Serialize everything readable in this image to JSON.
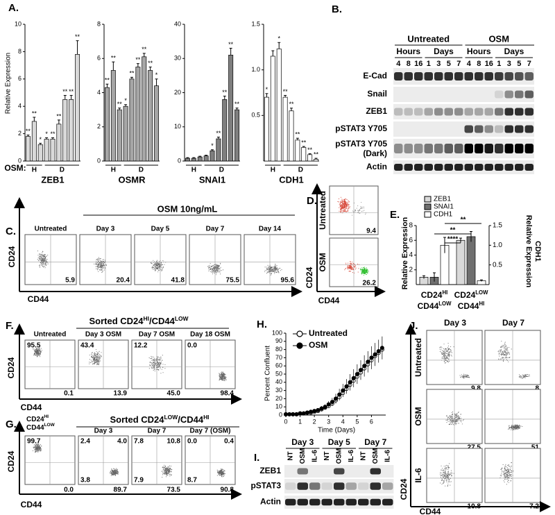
{
  "figure": {
    "A": {
      "label": "A.",
      "y_label": "Relative Expression",
      "osm_label": "OSM:",
      "group_labels": [
        "H",
        "D"
      ],
      "charts": [
        {
          "name": "ZEB1",
          "color": "#d9d9d9",
          "ylim": [
            0,
            10
          ],
          "yticks": [
            0,
            2,
            4,
            6,
            8,
            10
          ],
          "values": [
            1.8,
            2.9,
            1.2,
            1.6,
            1.6,
            2.7,
            4.5,
            4.5,
            7.8
          ],
          "errors": [
            0.1,
            0.3,
            0.1,
            0.1,
            0.1,
            0.3,
            0.3,
            0.3,
            1.0
          ],
          "stars": [
            "**",
            "**",
            "*",
            "*",
            "**",
            "**",
            "**",
            "**",
            "**"
          ]
        },
        {
          "name": "OSMR",
          "color": "#a6a6a6",
          "ylim": [
            0,
            8
          ],
          "yticks": [
            0,
            2,
            4,
            6,
            8
          ],
          "values": [
            4.3,
            5.3,
            3.0,
            3.2,
            4.8,
            5.5,
            6.1,
            5.3,
            4.4
          ],
          "errors": [
            0.2,
            0.5,
            0.1,
            0.1,
            0.1,
            0.2,
            0.2,
            0.2,
            0.4
          ],
          "stars": [
            "**",
            "**",
            "**",
            "*",
            "**",
            "**",
            "**",
            "**",
            "*"
          ]
        },
        {
          "name": "SNAI1",
          "color": "#7f7f7f",
          "ylim": [
            0,
            40
          ],
          "yticks": [
            0,
            10,
            20,
            30,
            40
          ],
          "values": [
            0.8,
            0.8,
            1.2,
            1.5,
            3,
            6.5,
            18,
            31,
            15
          ],
          "errors": [
            0.2,
            0.2,
            0.2,
            0.2,
            0.3,
            0.5,
            1,
            2,
            0.5
          ],
          "stars": [
            null,
            null,
            null,
            null,
            "*",
            "**",
            "**",
            "**",
            "**"
          ]
        },
        {
          "name": "CDH1",
          "color": "#ffffff",
          "ylim": [
            0,
            1.5
          ],
          "yticks": [
            0.5,
            {
              "value": 1,
              "label": "1.0"
            },
            1.5
          ],
          "values": [
            0.7,
            1.15,
            1.23,
            0.7,
            0.55,
            0.23,
            0.15,
            0.07,
            0.02
          ],
          "errors": [
            0.04,
            0.06,
            0.07,
            0.02,
            0.03,
            0.02,
            0.01,
            0.01,
            0.01
          ],
          "stars": [
            "*",
            null,
            "*",
            "**",
            "**",
            "**",
            "**",
            "**",
            "**"
          ]
        }
      ]
    },
    "B": {
      "label": "B.",
      "groups": [
        "Untreated",
        "OSM"
      ],
      "units": [
        "Hours",
        "Days",
        "Hours",
        "Days"
      ],
      "timepoints": [
        4,
        8,
        16,
        1,
        3,
        5,
        7,
        4,
        8,
        16,
        1,
        3,
        5,
        7
      ],
      "rows": [
        "E-Cad",
        "Snail",
        "ZEB1",
        "pSTAT3 Y705",
        [
          "pSTAT3 Y705",
          "(Dark)"
        ],
        "Actin"
      ]
    },
    "C": {
      "label": "C.",
      "header": "OSM 10ng/mL",
      "titles": [
        "Untreated",
        "Day 3",
        "Day 5",
        "Day 7",
        "Day 14"
      ],
      "percentages": [
        "5.9",
        "20.4",
        "41.8",
        "75.5",
        "95.6"
      ],
      "y_axis": "CD24",
      "x_axis": "CD44"
    },
    "D": {
      "label": "D.",
      "rows": [
        "Untreated",
        "OSM"
      ],
      "percentages": [
        "9.4",
        "26.2"
      ],
      "y_axis": "CD24",
      "x_axis": "CD44"
    },
    "E": {
      "label": "E.",
      "ylim": [
        0,
        8
      ],
      "yticks": [
        2,
        4,
        6,
        8
      ],
      "y2lim": [
        0,
        1.5
      ],
      "y2ticks": [
        0.5,
        {
          "value": 1,
          "label": "1.0"
        },
        1.5
      ],
      "y_label": "Relative Expression",
      "y2_label": [
        "CDH1",
        "Relative Expression"
      ],
      "categories": [
        [
          "CD24",
          "HI",
          "CD44",
          "LOW"
        ],
        [
          "CD24",
          "LOW",
          "CD44",
          "HI"
        ]
      ],
      "series": [
        {
          "name": "ZEB1",
          "color": "#d9d9d9",
          "values": [
            1.0,
            6.0
          ],
          "errors": [
            0.2,
            0.3
          ]
        },
        {
          "name": "SNAI1",
          "color": "#6f6f6f",
          "values": [
            1.0,
            6.5
          ],
          "errors": [
            0.6,
            0.7
          ]
        },
        {
          "name": "CDH1",
          "color": "#ffffff",
          "axis": "y2",
          "values": [
            1.0,
            0.1
          ],
          "errors": [
            0.2,
            0.02
          ]
        }
      ],
      "significance": [
        "****",
        "**",
        "**"
      ]
    },
    "F": {
      "label": "F.",
      "header": [
        "Sorted CD24",
        "HI",
        "/CD44",
        "LOW"
      ],
      "titles": [
        "Untreated",
        "Day 3 OSM",
        "Day 7 OSM",
        "Day 18 OSM"
      ],
      "upper_left": [
        "95.5",
        "43.4",
        "12.2",
        "0.0"
      ],
      "lower_right": [
        "0.1",
        "13.9",
        "45.0",
        "98.4"
      ],
      "y_axis": "CD24",
      "x_axis": "CD44"
    },
    "G": {
      "label": "G.",
      "header": [
        "Sorted CD24",
        "LOW",
        "/CD44",
        "HI"
      ],
      "first_title": [
        "CD24",
        "HI",
        "CD44",
        "LOW"
      ],
      "titles": [
        "Day 3",
        "Day 7",
        "Day 7 (OSM)"
      ],
      "quadrants": [
        [
          "99.7",
          null,
          null,
          "0.0"
        ],
        [
          "2.4",
          "4.0",
          "3.8",
          "89.7"
        ],
        [
          "7.8",
          "10.8",
          "7.9",
          "73.5"
        ],
        [
          "0.0",
          "0.4",
          "8.7",
          "90.8"
        ]
      ],
      "y_axis": "CD24",
      "x_axis": "CD44"
    },
    "H": {
      "label": "H.",
      "type": "line",
      "y_label": "Percent Confluent",
      "x_label": "Time (Days)",
      "xlim": [
        0,
        7
      ],
      "xticks": [
        0,
        1,
        2,
        3,
        4,
        5,
        6
      ],
      "ylim": [
        0,
        100
      ],
      "yticks": [
        0,
        10,
        20,
        30,
        40,
        50,
        60,
        70,
        80,
        90,
        100
      ],
      "x": [
        0,
        0.25,
        0.5,
        0.75,
        1,
        1.25,
        1.5,
        1.75,
        2,
        2.25,
        2.5,
        2.75,
        3,
        3.25,
        3.5,
        3.75,
        4,
        4.25,
        4.5,
        4.75,
        5,
        5.25,
        5.5,
        5.75,
        6,
        6.25,
        6.5,
        6.75
      ],
      "series": [
        {
          "name": "Untreated",
          "color": "#ffffff",
          "values": [
            1,
            1,
            1,
            1,
            2,
            2,
            3,
            3,
            4,
            5,
            7,
            9,
            11,
            14,
            18,
            22,
            27,
            32,
            37,
            42,
            47,
            52,
            57,
            62,
            67,
            72,
            76,
            80
          ]
        },
        {
          "name": "OSM",
          "color": "#000000",
          "values": [
            1,
            1,
            1,
            1,
            2,
            2,
            3,
            4,
            5,
            6,
            8,
            10,
            13,
            16,
            20,
            25,
            30,
            35,
            40,
            45,
            50,
            55,
            60,
            65,
            70,
            74,
            78,
            82
          ],
          "errors": [
            0,
            0,
            0,
            0,
            1,
            1,
            1,
            1,
            2,
            2,
            3,
            3,
            4,
            5,
            6,
            7,
            8,
            9,
            10,
            11,
            12,
            12,
            13,
            13,
            14,
            14,
            14,
            14
          ]
        }
      ]
    },
    "I": {
      "label": "I.",
      "days": [
        "Day 3",
        "Day 5",
        "Day 7"
      ],
      "lanes": [
        "NT",
        "OSM",
        "IL-6"
      ],
      "rows": [
        "ZEB1",
        "pSTAT3",
        "Actin"
      ]
    },
    "J": {
      "label": "J.",
      "titles": [
        "Day 3",
        "Day 7"
      ],
      "rows": [
        "Untreated",
        "OSM",
        "IL-6"
      ],
      "percentages": [
        [
          "9.8",
          "8"
        ],
        [
          "27.5",
          "51"
        ],
        [
          "10.8",
          "7.2"
        ]
      ],
      "y_axis": "CD24",
      "x_axis": "CD44"
    }
  }
}
